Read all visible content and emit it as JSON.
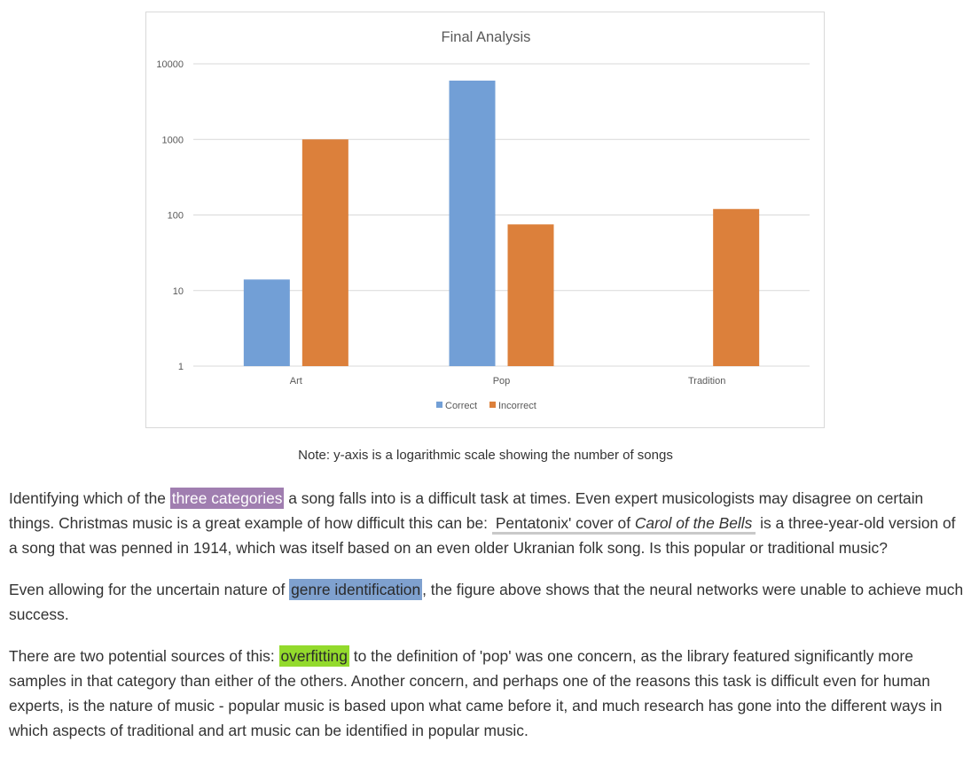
{
  "chart_data": {
    "type": "bar",
    "title": "Final Analysis",
    "categories": [
      "Art",
      "Pop",
      "Tradition"
    ],
    "series": [
      {
        "name": "Correct",
        "values": [
          14,
          6000,
          null
        ],
        "color": "#729fd6"
      },
      {
        "name": "Incorrect",
        "values": [
          1000,
          75,
          120
        ],
        "color": "#dc803b"
      }
    ],
    "y_scale": "log",
    "ylim": [
      1,
      10000
    ],
    "y_ticks": [
      "1",
      "10",
      "100",
      "1000",
      "10000"
    ],
    "xlabel": "",
    "ylabel": "",
    "grid": true,
    "legend_position": "bottom"
  },
  "caption": "Note: y-axis is a logarithmic scale showing the number of songs",
  "article": {
    "p1": {
      "t1": "Identifying which of the ",
      "hl1": "three categories",
      "t2": " a song falls into is a difficult task at times. Even expert musicologists may disagree on certain things. Christmas music is a great example of how difficult this can be: ",
      "link_a": "Pentatonix' cover of ",
      "link_b": "Carol of the Bells",
      "t3": " is a three-year-old version of a song that was penned in 1914, which was itself based on an even older Ukranian folk song. Is this popular or traditional music?"
    },
    "p2": {
      "t1": "Even allowing for the uncertain nature of ",
      "hl1": "genre identification",
      "t2": ", the figure above shows that the neural networks were unable to achieve much success."
    },
    "p3": {
      "t1": "There are two potential sources of this: ",
      "hl1": "overfitting",
      "t2": " to the definition of 'pop' was one concern, as the library featured significantly more samples in that category than either of the others. Another concern, and perhaps one of the reasons this task is difficult even for human experts, is the nature of music - popular music is based upon what came before it, and much research has gone into the different ways in which aspects of traditional and art music can be identified in popular music."
    }
  },
  "colors": {
    "highlight_purple": "#a07eb0",
    "highlight_blue": "#7fa1cf",
    "highlight_green": "#93da2c"
  }
}
